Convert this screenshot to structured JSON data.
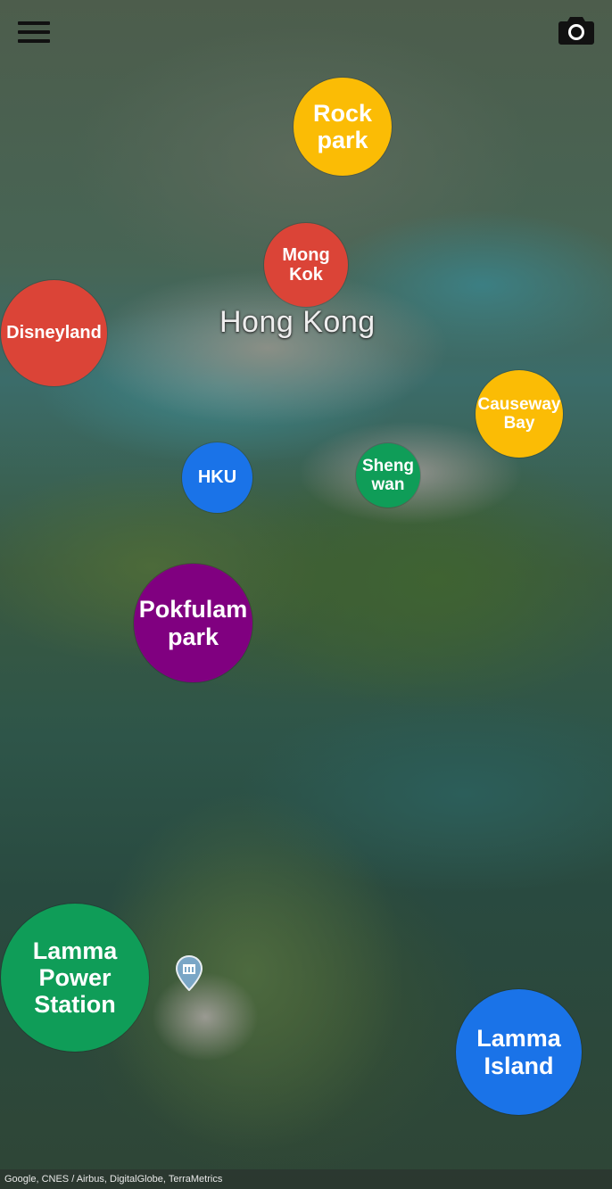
{
  "map": {
    "region_label": "Hong Kong",
    "attribution": "Google, CNES / Airbus, DigitalGlobe, TerraMetrics"
  },
  "toolbar": {
    "menu_icon": "hamburger-menu-icon",
    "camera_icon": "camera-icon"
  },
  "markers": [
    {
      "id": "rock-park",
      "label": "Rock park",
      "color": "#fbbc05"
    },
    {
      "id": "mong-kok",
      "label": "Mong Kok",
      "color": "#db4437"
    },
    {
      "id": "disneyland",
      "label": "Disneyland",
      "color": "#db4437"
    },
    {
      "id": "causeway-bay",
      "label": "Causeway Bay",
      "color": "#fbbc05"
    },
    {
      "id": "hku",
      "label": "HKU",
      "color": "#1a73e8"
    },
    {
      "id": "sheng-wan",
      "label": "Sheng wan",
      "color": "#0f9d58"
    },
    {
      "id": "pokfulam-park",
      "label": "Pokfulam park",
      "color": "#800080"
    },
    {
      "id": "lamma-power-station",
      "label": "Lamma Power Station",
      "color": "#0f9d58"
    },
    {
      "id": "lamma-island",
      "label": "Lamma Island",
      "color": "#1a73e8"
    }
  ]
}
